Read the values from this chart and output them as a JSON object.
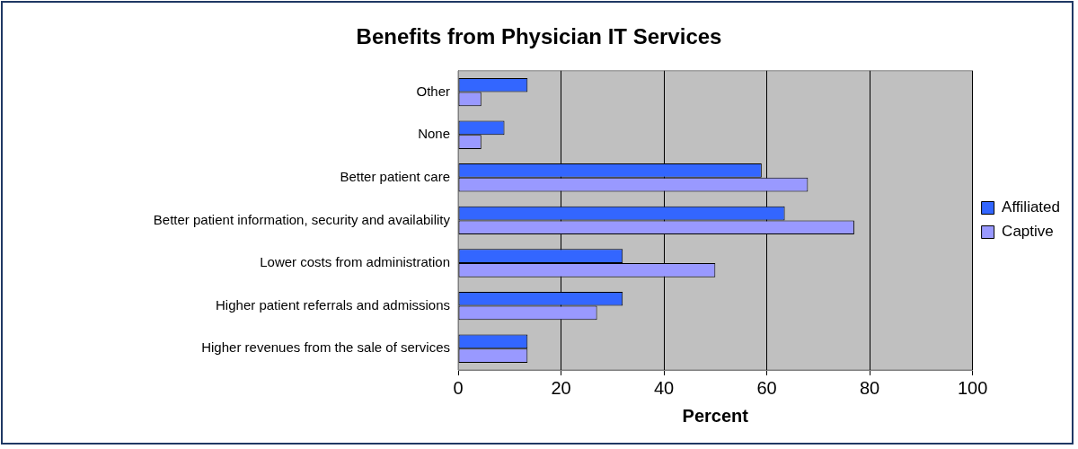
{
  "chart_data": {
    "type": "bar",
    "orientation": "horizontal",
    "title": "Benefits from Physician IT Services",
    "xlabel": "Percent",
    "categories": [
      "Other",
      "None",
      "Better patient care",
      "Better patient information, security and availability",
      "Lower costs from administration",
      "Higher patient referrals and admissions",
      "Higher revenues from the sale of services"
    ],
    "series": [
      {
        "name": "Affiliated",
        "color": "#3366ff",
        "values": [
          13.5,
          9,
          59,
          63.5,
          32,
          32,
          13.5
        ]
      },
      {
        "name": "Captive",
        "color": "#9999ff",
        "values": [
          4.5,
          4.5,
          68,
          77,
          50,
          27,
          13.5
        ]
      }
    ],
    "xlim": [
      0,
      100
    ],
    "xticks": [
      0,
      20,
      40,
      60,
      80,
      100
    ],
    "grid": "x",
    "legend": "right"
  }
}
